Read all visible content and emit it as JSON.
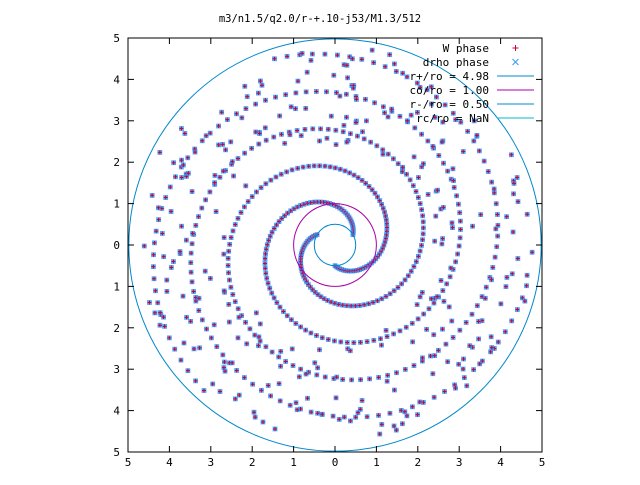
{
  "chart_data": {
    "type": "scatter",
    "title": "m3/n1.5/q2.0/r-+.10-j53/M1.3/512",
    "xlabel": "",
    "ylabel": "",
    "xlim": [
      -5,
      5
    ],
    "ylim": [
      -5,
      5
    ],
    "x_tick_values": [
      -5,
      -4,
      -3,
      -2,
      -1,
      0,
      1,
      2,
      3,
      4,
      5
    ],
    "x_tick_labels": [
      "5",
      "4",
      "3",
      "2",
      "1",
      "0",
      "1",
      "2",
      "3",
      "4",
      "5"
    ],
    "y_tick_values": [
      5,
      4,
      3,
      2,
      1,
      0,
      -1,
      -2,
      -3,
      -4,
      -5
    ],
    "y_tick_labels": [
      "5",
      "4",
      "3",
      "2",
      "1",
      "0",
      "1",
      "2",
      "3",
      "4",
      "5"
    ],
    "grid": false,
    "legend_position": "top-right",
    "series": [
      {
        "name": "W phase",
        "marker": "plus",
        "color": "#ff0000",
        "description_points": "spiral arms (3-armed) plus sparse outer scatter"
      },
      {
        "name": "drho phase",
        "marker": "cross",
        "color": "#0066cc",
        "description_points": "spiral arms (3-armed) plus sparse outer scatter"
      },
      {
        "name": "r+/ro = 4.98",
        "type": "circle",
        "radius": 4.98,
        "color": "#0066cc"
      },
      {
        "name": "co/ro = 1.00",
        "type": "circle",
        "radius": 1.0,
        "color": "#aa00aa"
      },
      {
        "name": "r-/ro = 0.50",
        "type": "circle",
        "radius": 0.5,
        "color": "#0066cc"
      },
      {
        "name": "rc/ro = NaN",
        "type": "circle",
        "radius": null,
        "color": "#00cccc"
      }
    ],
    "spiral_model": {
      "arms": 3,
      "inner_radius": 0.5,
      "outer_radius": 4.98,
      "turns": 1.55,
      "handedness": "counterclockwise-outward"
    }
  },
  "colors": {
    "w_phase": "#cc0033",
    "drho_phase": "#3399ff",
    "circle_outer": "#0088cc",
    "circle_co": "#aa00aa",
    "circle_inner": "#0088cc",
    "circle_rc": "#00bbcc",
    "axis": "#000000"
  }
}
